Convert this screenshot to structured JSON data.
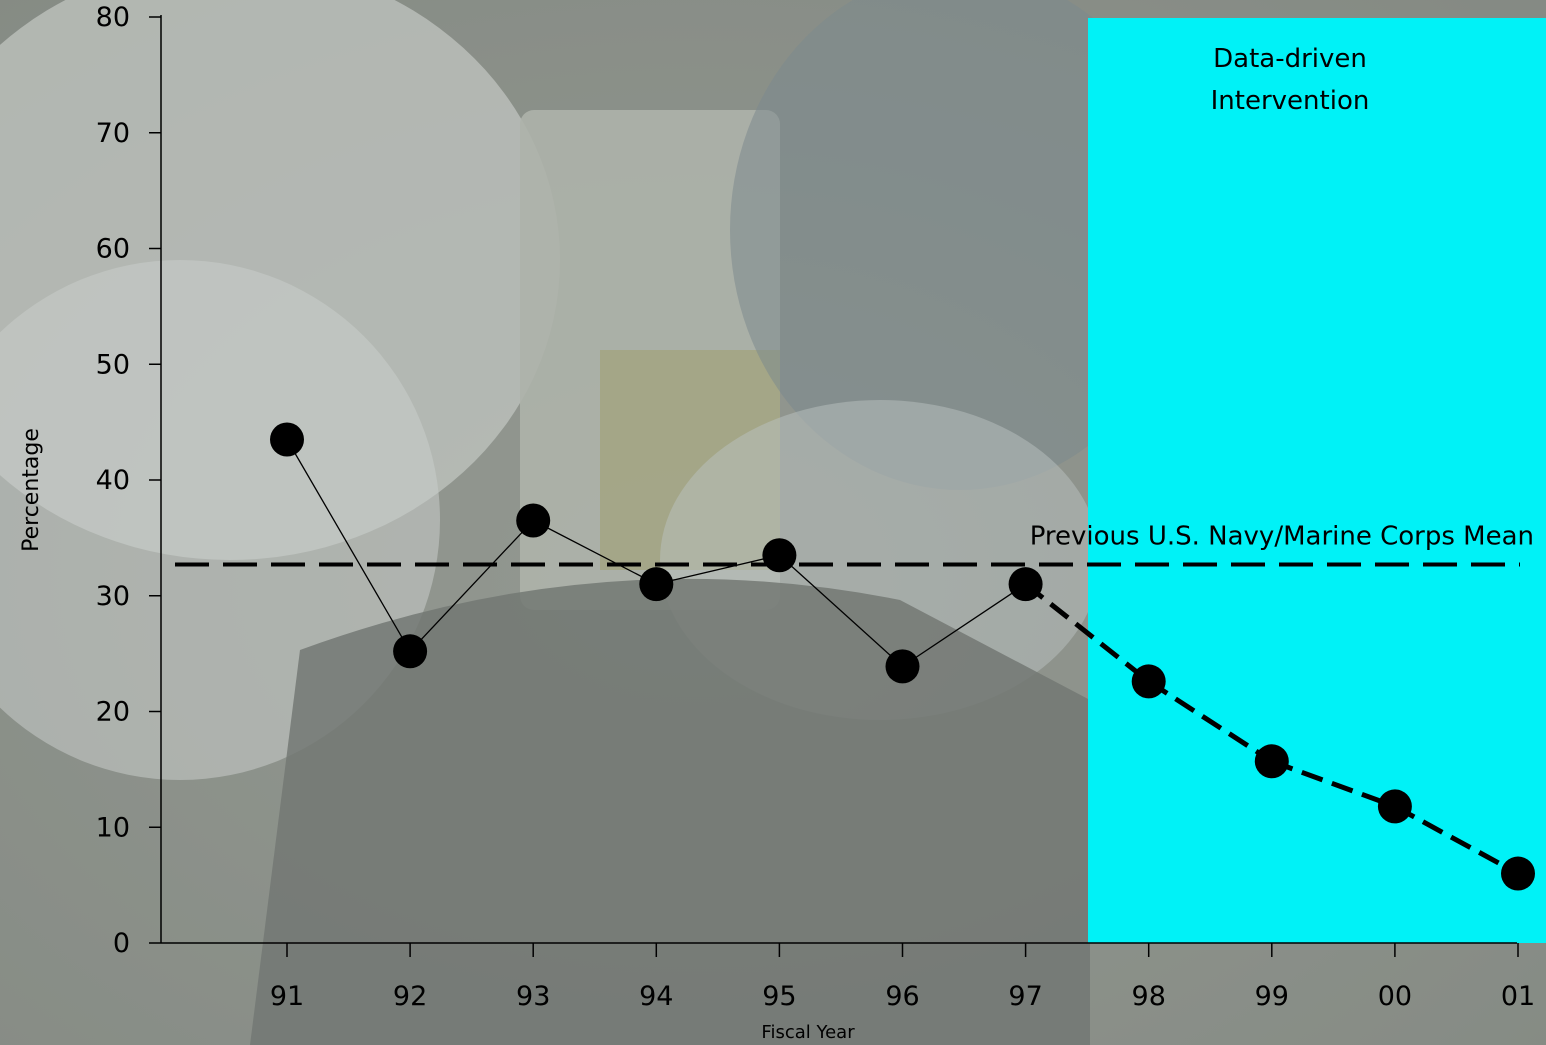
{
  "chart_data": {
    "type": "line",
    "xlabel": "Fiscal Year",
    "ylabel": "Percentage",
    "ylim": [
      0,
      80
    ],
    "yticks": [
      "0",
      "10",
      "20",
      "30",
      "40",
      "50",
      "60",
      "70",
      "80"
    ],
    "categories": [
      "91",
      "92",
      "93",
      "94",
      "95",
      "96",
      "97",
      "98",
      "99",
      "00",
      "01"
    ],
    "series": [
      {
        "values": [
          43.5,
          25.2,
          36.5,
          31.0,
          33.5,
          23.9,
          31.0,
          22.6,
          15.7,
          11.8,
          6.0
        ],
        "style_before": "solid",
        "style_after_97": "dashed"
      }
    ],
    "reference_line": {
      "label": "Previous U.S. Navy/Marine Corps Mean",
      "value": 32.7,
      "style": "dashed"
    },
    "shaded_region": {
      "label_line1": "Data-driven",
      "label_line2": "Intervention",
      "from_category": "97",
      "to_category": "01",
      "color": "#00f2f7"
    },
    "grid": false,
    "background": "photo of surgeons in operating room (faded)"
  }
}
